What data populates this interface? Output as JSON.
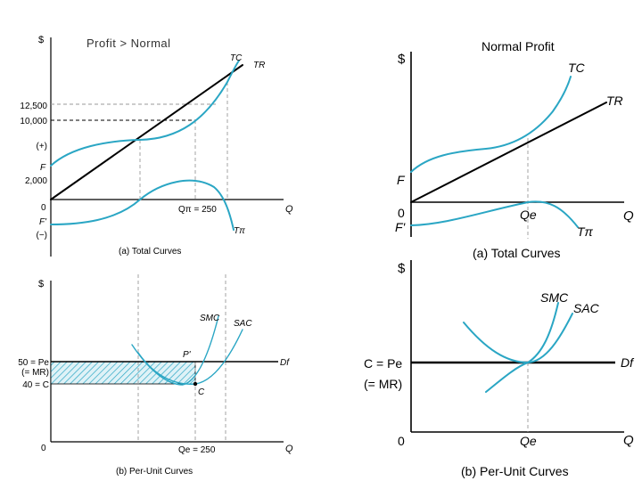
{
  "colors": {
    "curve": "#2aa6c4",
    "line": "#000000",
    "dash": "#9a9a9a",
    "hatch": "#2aa6c4"
  },
  "left": {
    "header": "Profit > Normal",
    "top": {
      "y_axis_label": "$",
      "x_axis_label": "Q",
      "origin_label": "0",
      "tc_label": "TC",
      "tr_label": "TR",
      "tpi_label": "Tπ",
      "q_label": "Qπ = 250",
      "ticks": [
        "12,500",
        "10,000",
        "(+)",
        "F",
        "2,000",
        "F'",
        "(−)"
      ],
      "caption": "(a) Total Curves"
    },
    "bottom": {
      "y_axis_label": "$",
      "x_axis_label": "Q",
      "origin_label": "0",
      "smc_label": "SMC",
      "sac_label": "SAC",
      "d_label": "Df",
      "p_point": "P'",
      "c_point": "C",
      "ticks": [
        "50 = Pe",
        "(= MR)",
        "40 = C"
      ],
      "q_label": "Qe = 250",
      "caption": "(b) Per-Unit Curves"
    }
  },
  "right": {
    "title": "Normal Profit",
    "top": {
      "y_axis_label": "$",
      "x_axis_label": "Q",
      "origin_label": "0",
      "tc_label": "TC",
      "tr_label": "TR",
      "tpi_label": "Tπ",
      "f_label": "F",
      "fprime_label": "F'",
      "q_label": "Qe",
      "caption": "(a) Total Curves"
    },
    "bottom": {
      "y_axis_label": "$",
      "x_axis_label": "Q",
      "origin_label": "0",
      "smc_label": "SMC",
      "sac_label": "SAC",
      "d_label": "Df",
      "c_label_line1": "C = Pe",
      "c_label_line2": "(= MR)",
      "q_label": "Qe",
      "caption": "(b) Per-Unit Curves"
    }
  }
}
